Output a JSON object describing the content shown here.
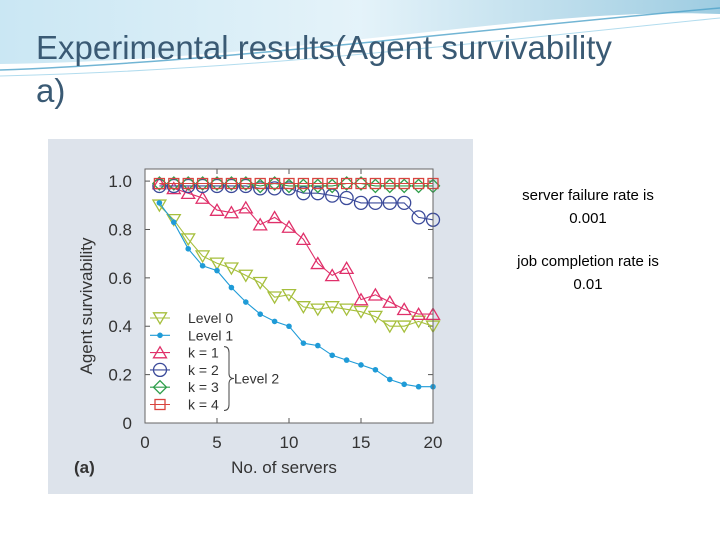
{
  "slide": {
    "title_lines": [
      "Experimental results(Agent survivability",
      "a)"
    ],
    "note_lines_1": [
      "server failure rate is",
      "0.001"
    ],
    "note_lines_2": [
      "job completion rate is",
      "0.01"
    ]
  },
  "colors": {
    "title": "#3a5a74",
    "panel_bg": "#dde3eb",
    "plot_bg": "#ffffff",
    "banner": "#4fa3c9"
  },
  "chart_data": {
    "type": "line",
    "panel_label": "(a)",
    "xlabel": "No. of servers",
    "ylabel": "Agent survivability",
    "xlim": [
      0,
      20
    ],
    "ylim": [
      0,
      1.05
    ],
    "xticks": [
      0,
      5,
      10,
      15,
      20
    ],
    "xtick_labels": [
      "0",
      "5",
      "10",
      "15",
      "20"
    ],
    "yticks": [
      0,
      0.2,
      0.4,
      0.6,
      0.8,
      1.0
    ],
    "ytick_labels": [
      "0",
      "0.2",
      "0.4",
      "0.6",
      "0.8",
      "1.0"
    ],
    "grid": false,
    "legend_position": "bottom-left",
    "annotation": "Level 2",
    "x": [
      1,
      2,
      3,
      4,
      5,
      6,
      7,
      8,
      9,
      10,
      11,
      12,
      13,
      14,
      15,
      16,
      17,
      18,
      19,
      20
    ],
    "series": [
      {
        "name": "Level 0",
        "marker": "triangle-down",
        "color": "#a6bf3c",
        "values": [
          0.9,
          0.84,
          0.76,
          0.69,
          0.66,
          0.64,
          0.61,
          0.58,
          0.52,
          0.53,
          0.48,
          0.47,
          0.48,
          0.47,
          0.46,
          0.44,
          0.4,
          0.4,
          0.42,
          0.4
        ]
      },
      {
        "name": "Level 1",
        "marker": "dot",
        "color": "#1f9bd7",
        "values": [
          0.91,
          0.83,
          0.72,
          0.65,
          0.63,
          0.56,
          0.5,
          0.45,
          0.42,
          0.4,
          0.33,
          0.32,
          0.28,
          0.26,
          0.24,
          0.22,
          0.18,
          0.16,
          0.15,
          0.15
        ]
      },
      {
        "name": "k = 1",
        "marker": "triangle-up",
        "color": "#e0306a",
        "values": [
          0.99,
          0.97,
          0.95,
          0.93,
          0.88,
          0.87,
          0.89,
          0.82,
          0.85,
          0.81,
          0.76,
          0.66,
          0.61,
          0.64,
          0.51,
          0.53,
          0.5,
          0.47,
          0.45,
          0.45
        ]
      },
      {
        "name": "k = 2",
        "marker": "circle",
        "color": "#3b4a9a",
        "values": [
          0.98,
          0.98,
          0.98,
          0.98,
          0.98,
          0.98,
          0.98,
          0.97,
          0.97,
          0.97,
          0.95,
          0.95,
          0.94,
          0.93,
          0.91,
          0.91,
          0.91,
          0.91,
          0.85,
          0.84
        ]
      },
      {
        "name": "k = 3",
        "marker": "diamond",
        "color": "#2e9e4a",
        "values": [
          0.99,
          0.99,
          0.99,
          0.99,
          0.99,
          0.99,
          0.99,
          0.98,
          0.99,
          0.98,
          0.98,
          0.98,
          0.98,
          0.99,
          0.99,
          0.98,
          0.98,
          0.98,
          0.98,
          0.98
        ]
      },
      {
        "name": "k = 4",
        "marker": "square",
        "color": "#d9443f",
        "values": [
          0.99,
          0.99,
          0.99,
          0.99,
          0.99,
          0.99,
          0.99,
          0.99,
          0.99,
          0.99,
          0.99,
          0.99,
          0.99,
          0.99,
          0.99,
          0.99,
          0.99,
          0.99,
          0.99,
          0.99
        ]
      }
    ]
  }
}
